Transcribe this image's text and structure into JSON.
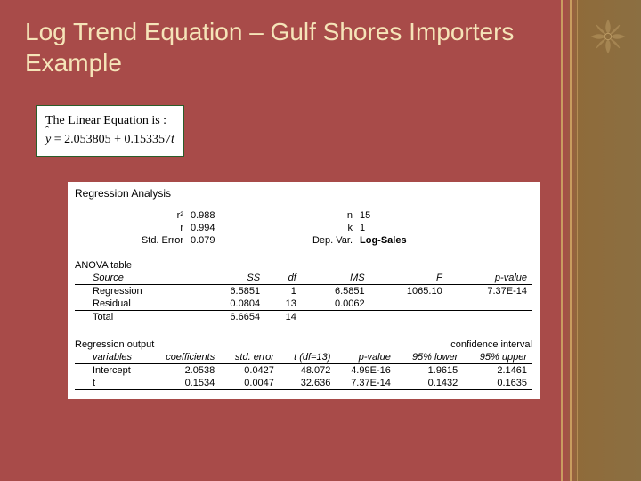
{
  "title": "Log Trend Equation – Gulf Shores Importers Example",
  "equation": {
    "line1": "The Linear Equation is :",
    "intercept": "2.053805",
    "slope": "0.153357"
  },
  "regression": {
    "heading": "Regression Analysis",
    "stats": {
      "r2_label": "r²",
      "r2": "0.988",
      "r_label": "r",
      "r": "0.994",
      "se_label": "Std. Error",
      "se": "0.079",
      "n_label": "n",
      "n": "15",
      "k_label": "k",
      "k": "1",
      "dep_label": "Dep. Var.",
      "dep": "Log-Sales"
    },
    "anova": {
      "label": "ANOVA table",
      "headers": [
        "Source",
        "SS",
        "df",
        "MS",
        "F",
        "p-value"
      ],
      "rows": [
        [
          "Regression",
          "6.5851",
          "1",
          "6.5851",
          "1065.10",
          "7.37E-14"
        ],
        [
          "Residual",
          "0.0804",
          "13",
          "0.0062",
          "",
          ""
        ],
        [
          "Total",
          "6.6654",
          "14",
          "",
          "",
          ""
        ]
      ]
    },
    "output": {
      "label_left": "Regression output",
      "label_right": "confidence interval",
      "headers": [
        "variables",
        "coefficients",
        "std. error",
        "t (df=13)",
        "p-value",
        "95% lower",
        "95% upper"
      ],
      "rows": [
        [
          "Intercept",
          "2.0538",
          "0.0427",
          "48.072",
          "4.99E-16",
          "1.9615",
          "2.1461"
        ],
        [
          "t",
          "0.1534",
          "0.0047",
          "32.636",
          "7.37E-14",
          "0.1432",
          "0.1635"
        ]
      ]
    }
  }
}
